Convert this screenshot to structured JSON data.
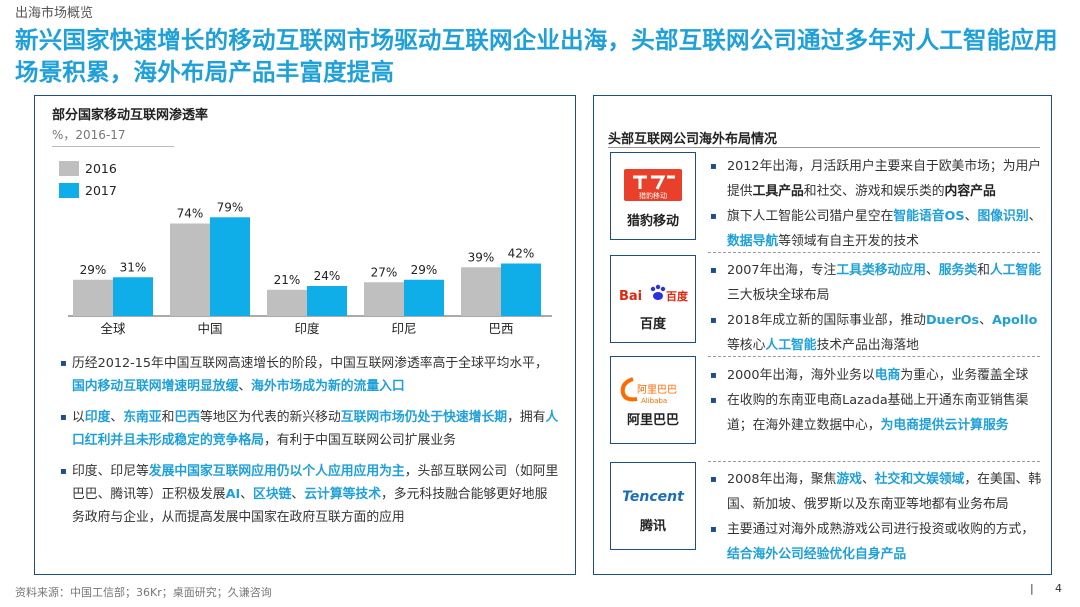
{
  "section_label": "出海市场概览",
  "headline": "新兴国家快速增长的移动互联网市场驱动互联网企业出海，头部互联网公司通过多年对人工智能应用场景积累，海外布局产品丰富度提高",
  "left_panel": {
    "title": "部分国家移动互联网渗透率",
    "unit": "%，2016-17"
  },
  "chart_data": {
    "type": "bar",
    "title": "部分国家移动互联网渗透率",
    "subtitle": "%，2016-17",
    "categories": [
      "全球",
      "中国",
      "印度",
      "印尼",
      "巴西"
    ],
    "series": [
      {
        "name": "2016",
        "values": [
          29,
          74,
          21,
          27,
          39
        ],
        "color": "#bfbfbf"
      },
      {
        "name": "2017",
        "values": [
          31,
          79,
          24,
          29,
          42
        ],
        "color": "#10aee8"
      }
    ],
    "value_suffix": "%",
    "ylim": [
      0,
      80
    ],
    "grid": false,
    "legend": "top-left"
  },
  "left_bullets": [
    [
      "历经2012-15年中国互联网高速增长的阶段，中国互联网渗透率高于全球平均水平，",
      "国内移动互联网增速明显放缓",
      "、",
      "海外市场成为新的流量入口"
    ],
    [
      "以",
      "印度",
      "、",
      "东南亚",
      "和",
      "巴西",
      "等地区为代表的新兴移动",
      "互联网市场仍处于快速增长期",
      "，拥有",
      "人口红利并且未形成稳定的竞争格局",
      "，有利于中国互联网公司扩展业务"
    ],
    [
      "印度、印尼等",
      "发展中国家互联网应用仍以个人应用应用为主",
      "，头部互联网公司（如阿里巴巴、腾讯等）正积极发展",
      "AI",
      "、",
      "区块链",
      "、",
      "云计算等技术",
      "，多元科技融合能够更好地服务政府与企业，从而提高发展中国家在政府互联方面的应用"
    ]
  ],
  "right_panel": {
    "title": "头部互联网公司海外布局情况",
    "companies": [
      {
        "name": "猎豹移动",
        "logo_text": "猎豹移动",
        "logo_icon": "cheetah-mobile-logo",
        "bullets": [
          [
            "2012年出海，月活跃用户主要来自于欧美市场；为用户提供",
            "工具产品",
            "和社交、游戏和娱乐类的",
            "内容产品"
          ],
          [
            "旗下人工智能公司猎户星空在",
            "智能语音OS",
            "、",
            "图像识别",
            "、",
            "数据导航",
            "等领域有自主开发的技术"
          ]
        ]
      },
      {
        "name": "百度",
        "logo_text_a": "Bai",
        "logo_text_b": "百度",
        "logo_icon": "baidu-paw-logo",
        "bullets": [
          [
            "2007年出海，专注",
            "工具类移动应用",
            "、",
            "服务类",
            "和",
            "人工智能",
            "三大板块全球布局"
          ],
          [
            "2018年成立新的国际事业部，推动",
            "DuerOs",
            "、",
            "Apollo",
            "等核心",
            "人工智能",
            "技术产品出海落地"
          ]
        ]
      },
      {
        "name": "阿里巴巴",
        "logo_text_a": "阿里巴巴",
        "logo_text_b": "Alibaba",
        "logo_icon": "alibaba-logo",
        "bullets": [
          [
            "2000年出海，海外业务以",
            "电商",
            "为重心，业务覆盖全球"
          ],
          [
            "在收购的东南亚电商Lazada基础上开通东南亚销售渠道；在海外建立数据中心，",
            "为电商提供云计算服务",
            ""
          ]
        ]
      },
      {
        "name": "腾讯",
        "logo_text": "Tencent",
        "logo_icon": "tencent-logo",
        "bullets": [
          [
            "2008年出海，聚焦",
            "游戏",
            "、",
            "社交和文娱领域",
            "，在美国、韩国、新加坡、俄罗斯以及东南亚等地都有业务布局"
          ],
          [
            "主要通过对海外成熟游戏公司进行投资或收购的方式，",
            "结合海外公司经验优化自身产品",
            ""
          ]
        ]
      }
    ]
  },
  "footer": {
    "source": "资料来源：中国工信部；36Kr；桌面研究；久谦咨询",
    "page_number": "4",
    "separator": "|"
  },
  "colors": {
    "accent": "#1fa0d8",
    "navy": "#1d4e89",
    "bar_2016": "#bfbfbf",
    "bar_2017": "#10aee8"
  }
}
